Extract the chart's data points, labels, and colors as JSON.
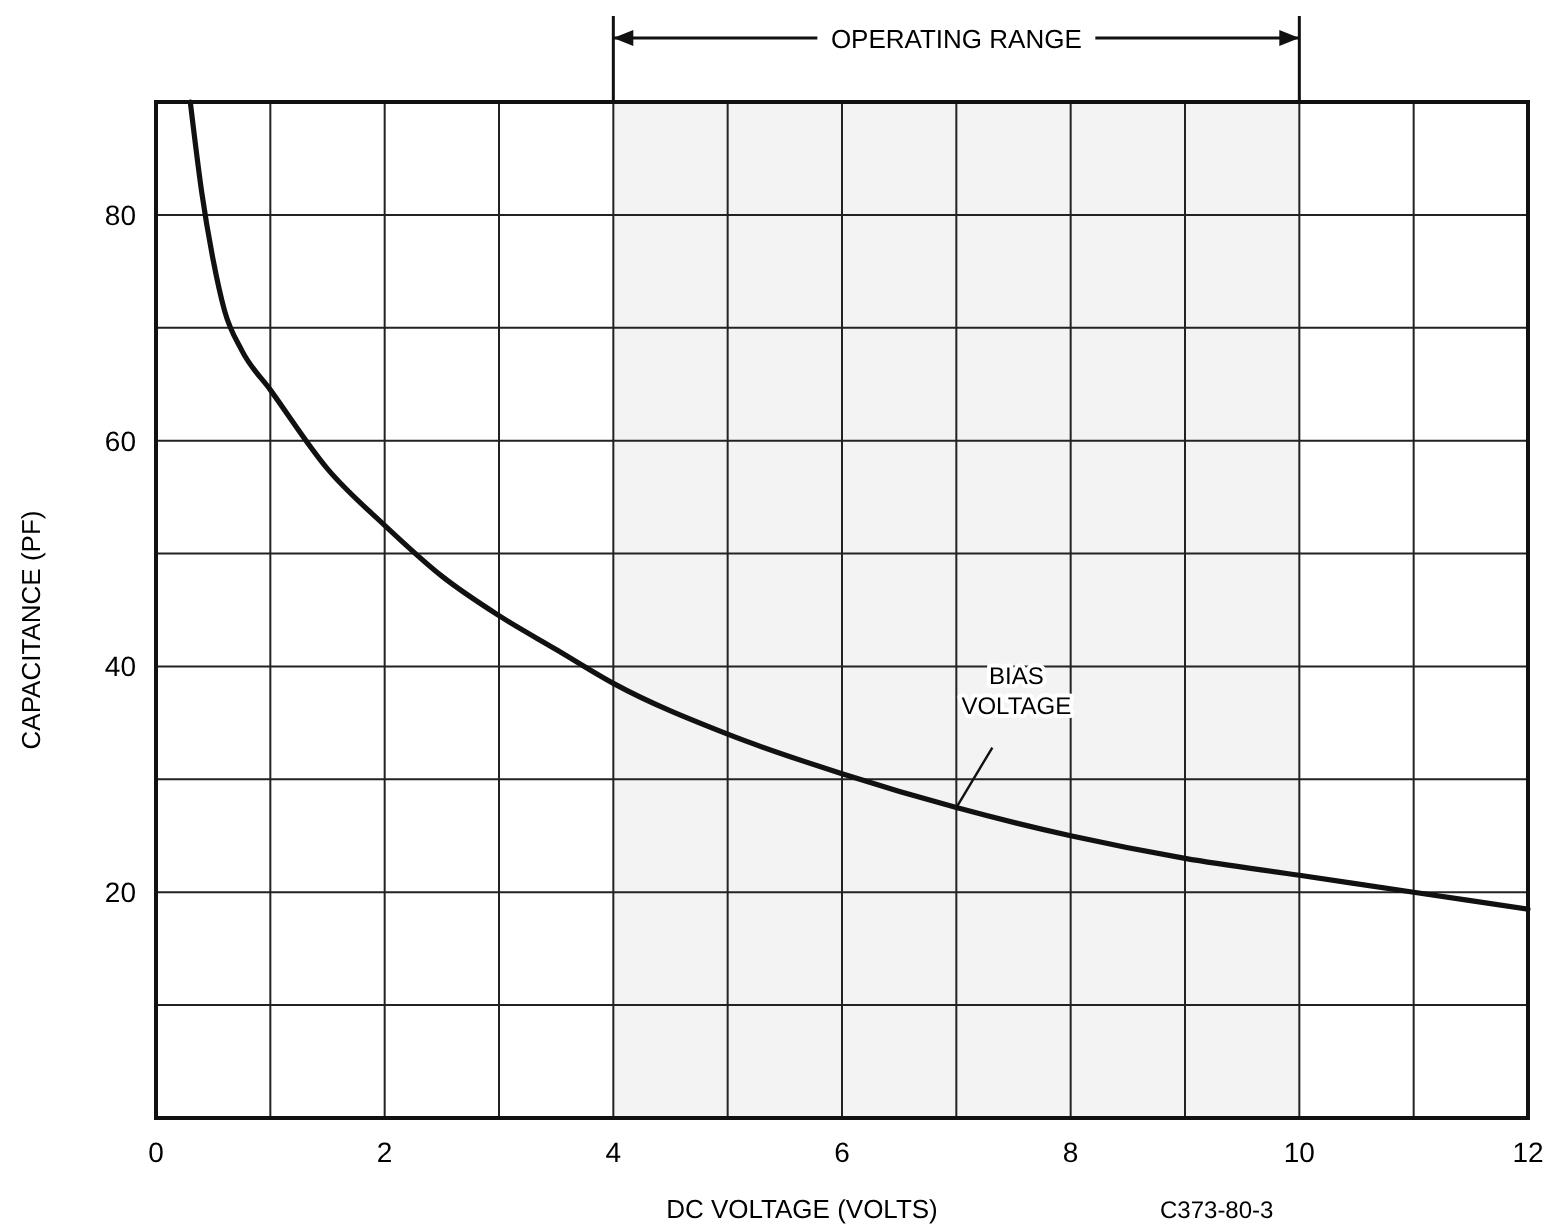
{
  "chart_data": {
    "type": "line",
    "xlabel": "DC VOLTAGE (VOLTS)",
    "ylabel": "CAPACITANCE (PF)",
    "xlim": [
      0,
      12
    ],
    "ylim": [
      0,
      90
    ],
    "xticks": [
      0,
      {
        "value": 1,
        "label": null
      },
      2,
      {
        "value": 3,
        "label": null
      },
      4,
      {
        "value": 5,
        "label": null
      },
      6,
      {
        "value": 7,
        "label": null
      },
      8,
      {
        "value": 9,
        "label": null
      },
      10,
      {
        "value": 11,
        "label": null
      },
      12
    ],
    "yticks": [
      {
        "value": 10,
        "label": null
      },
      20,
      {
        "value": 30,
        "label": null
      },
      40,
      {
        "value": 50,
        "label": null
      },
      60,
      {
        "value": 70,
        "label": null
      },
      80,
      {
        "value": 90,
        "label": null
      }
    ],
    "grid": true,
    "marker": "none",
    "line_style": "solid",
    "series": [
      {
        "color": "#111111",
        "x": [
          0.3,
          0.4,
          0.5,
          0.6,
          0.75,
          1,
          1.5,
          2,
          2.5,
          3,
          3.5,
          4,
          5,
          6,
          7,
          8,
          9,
          10,
          11,
          12
        ],
        "values": [
          90,
          82,
          76,
          71.5,
          68,
          64.5,
          57.5,
          52.5,
          48,
          44.5,
          41.5,
          38.5,
          34,
          30.5,
          27.5,
          25,
          23,
          21.5,
          20,
          18.5
        ]
      }
    ],
    "bands": [
      {
        "axis": "x",
        "from": 4,
        "to": 10,
        "label": "OPERATING RANGE"
      }
    ],
    "annotations": [
      {
        "text": "BIAS VOLTAGE",
        "x": 7,
        "y": 27.5
      },
      "C373-80-3"
    ]
  }
}
